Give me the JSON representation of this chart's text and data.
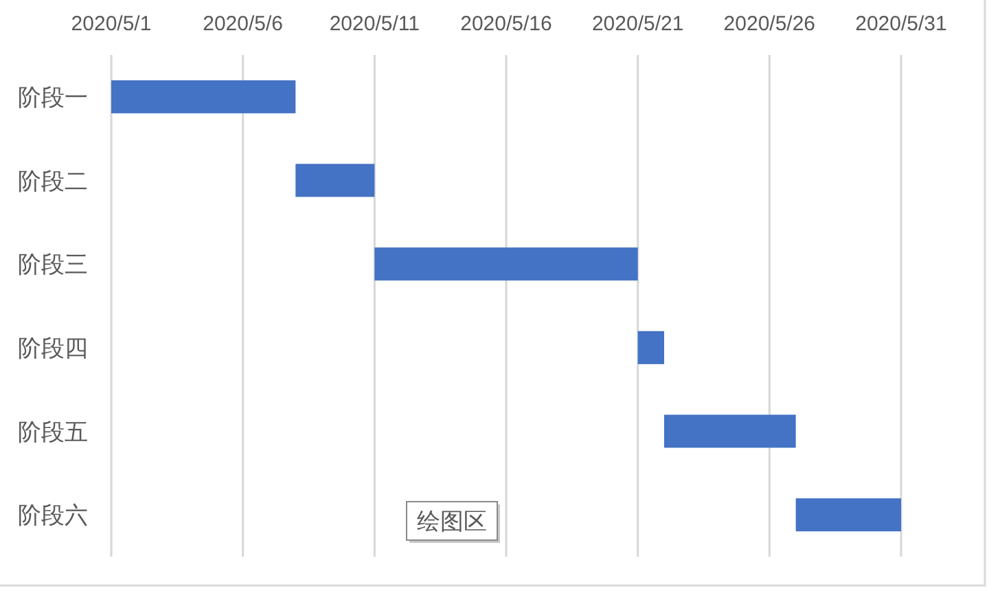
{
  "chart_data": {
    "type": "bar",
    "orientation": "horizontal",
    "categories": [
      "阶段一",
      "阶段二",
      "阶段三",
      "阶段四",
      "阶段五",
      "阶段六"
    ],
    "base": [
      18383,
      18390,
      18393,
      18403,
      18404,
      18409
    ],
    "values": [
      7,
      3,
      10,
      1,
      5,
      4
    ],
    "color": "#4472c4",
    "xlim": [
      "2020-05-01",
      "2020-05-31"
    ],
    "xticks": [
      {
        "value": "2020-05-01",
        "label": "2020/5/1"
      },
      {
        "value": "2020-05-06",
        "label": "2020/5/6"
      },
      {
        "value": "2020-05-11",
        "label": "2020/5/11"
      },
      {
        "value": "2020-05-16",
        "label": "2020/5/16"
      },
      {
        "value": "2020-05-21",
        "label": "2020/5/21"
      },
      {
        "value": "2020-05-26",
        "label": "2020/5/26"
      },
      {
        "value": "2020-05-31",
        "label": "2020/5/31"
      }
    ],
    "grid": "x",
    "annotations": [
      "绘图区"
    ]
  }
}
